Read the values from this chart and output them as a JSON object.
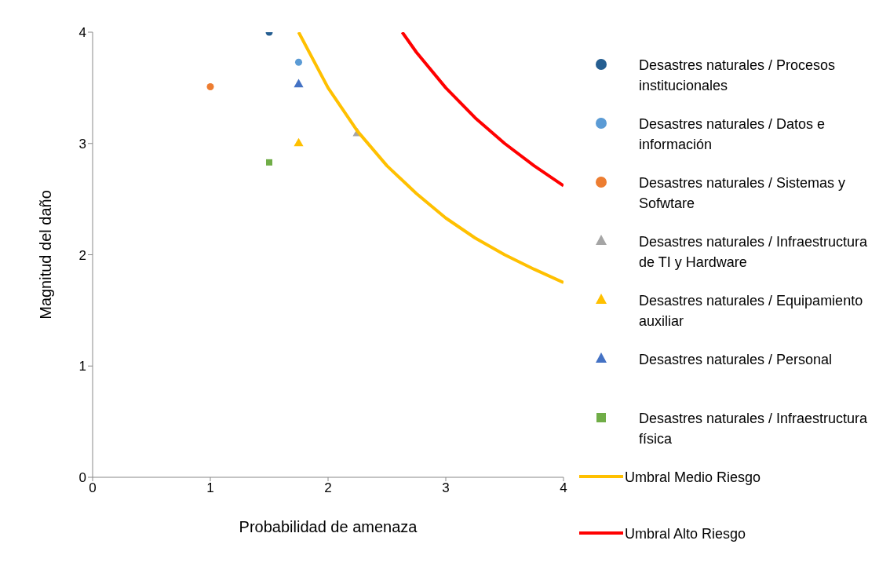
{
  "chart_data": {
    "type": "scatter",
    "xlabel": "Probabilidad de amenaza",
    "ylabel": "Magnitud del daño",
    "xlim": [
      0,
      4
    ],
    "ylim": [
      0,
      4
    ],
    "xticks": [
      0,
      1,
      2,
      3,
      4
    ],
    "yticks": [
      0,
      1,
      2,
      3,
      4
    ],
    "grid": false,
    "legend": "right",
    "series": [
      {
        "name": "Desastres naturales / Procesos institucionales",
        "color": "#255e91",
        "marker": "circle",
        "x": [
          1.5
        ],
        "values": [
          4
        ]
      },
      {
        "name": "Desastres naturales / Datos e información",
        "color": "#5b9bd5",
        "marker": "circle",
        "x": [
          1.75
        ],
        "values": [
          3.73
        ]
      },
      {
        "name": "Desastres naturales / Sistemas y Sofwtare",
        "color": "#ed7d31",
        "marker": "circle",
        "x": [
          1.0
        ],
        "values": [
          3.51
        ]
      },
      {
        "name": "Desastres naturales / Infraestructura de TI y Hardware",
        "color": "#a5a5a5",
        "marker": "triangle",
        "x": [
          2.25
        ],
        "values": [
          3.09
        ]
      },
      {
        "name": "Desastres naturales / Equipamiento auxiliar",
        "color": "#ffc000",
        "marker": "triangle",
        "x": [
          1.75
        ],
        "values": [
          3.0
        ]
      },
      {
        "name": "Desastres naturales / Personal",
        "color": "#4472c4",
        "marker": "triangle",
        "x": [
          1.75
        ],
        "values": [
          3.53
        ]
      },
      {
        "name": "Desastres naturales / Infraestructura física",
        "color": "#70ad47",
        "marker": "square",
        "x": [
          1.5
        ],
        "values": [
          2.83
        ]
      },
      {
        "name": "Umbral Medio Riesgo",
        "type": "line",
        "color": "#ffc000",
        "marker": "none",
        "x": [
          1.75,
          2,
          2.25,
          2.5,
          2.75,
          3,
          3.25,
          3.5,
          3.75,
          4
        ],
        "values": [
          4,
          3.5,
          3.11,
          2.8,
          2.55,
          2.33,
          2.15,
          2,
          1.87,
          1.75
        ]
      },
      {
        "name": "Umbral Alto Riesgo",
        "type": "line",
        "color": "#ff0000",
        "marker": "none",
        "x": [
          2.63,
          2.75,
          3,
          3.25,
          3.5,
          3.75,
          4
        ],
        "values": [
          4,
          3.82,
          3.5,
          3.23,
          3,
          2.8,
          2.62
        ]
      }
    ]
  }
}
